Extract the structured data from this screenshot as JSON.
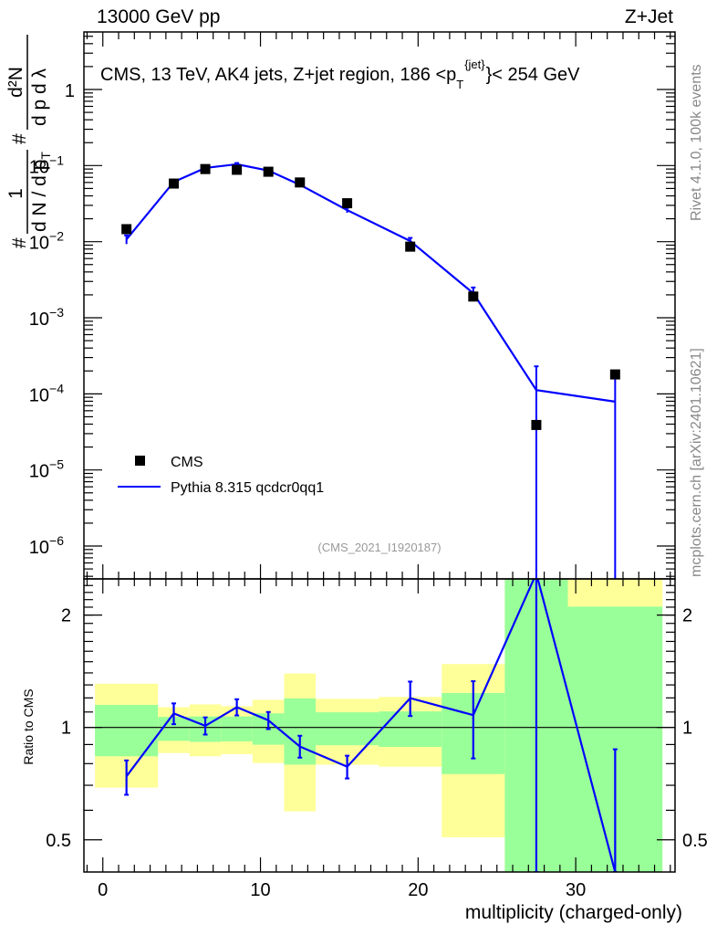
{
  "header": {
    "left": "13000 GeV pp",
    "right": "Z+Jet"
  },
  "side_labels": {
    "rivet": "Rivet 4.1.0,  100k events",
    "mcplots": "mcplots.cern.ch [arXiv:2401.10621]"
  },
  "colors": {
    "data": "#000000",
    "mc": "#0000ff",
    "band_stat": "#99ff99",
    "band_total": "#ffff99"
  },
  "chart_data": [
    {
      "type": "scatter",
      "panel": "main",
      "title": "CMS, 13 TeV, AK4 jets, Z+jet region, 186 <p",
      "title_sup": "{jet}",
      "title_sub": "T",
      "title_tail": "}< 254 GeV",
      "analysis_tag": "(CMS_2021_I1920187)",
      "ylabel": {
        "hash1": "#",
        "frac1_num": "1",
        "frac1_den": "d N / d p",
        "hash2": "#",
        "frac2_num": "d²N",
        "frac2_den": "d p   d λ",
        "sub": "T"
      },
      "yscale": "log",
      "xlim": [
        -1.2,
        36.3
      ],
      "ylim": [
        3.7e-07,
        5.7
      ],
      "yticks": [
        {
          "v": 1,
          "label": "1"
        },
        {
          "v": 0.1,
          "label": "10",
          "exp": "−1"
        },
        {
          "v": 0.01,
          "label": "10",
          "exp": "−2"
        },
        {
          "v": 0.001,
          "label": "10",
          "exp": "−3"
        },
        {
          "v": 0.0001,
          "label": "10",
          "exp": "−4"
        },
        {
          "v": 1e-05,
          "label": "10",
          "exp": "−5"
        },
        {
          "v": 1e-06,
          "label": "10",
          "exp": "−6"
        }
      ],
      "legend": {
        "placement": "bottom-left",
        "entries": [
          "CMS",
          "Pythia 8.315 qcdcr0qq1"
        ]
      },
      "x": [
        1.5,
        4.5,
        6.5,
        8.5,
        10.5,
        12.5,
        15.5,
        19.5,
        23.5,
        27.5,
        32.5
      ],
      "series": [
        {
          "name": "CMS",
          "values": [
            0.0146,
            0.058,
            0.09,
            0.088,
            0.083,
            0.06,
            0.032,
            0.0086,
            0.0019,
            3.9e-05,
            0.00018
          ]
        },
        {
          "name": "Pythia 8.315 qcdcr0qq1",
          "values": [
            0.0107,
            0.061,
            0.093,
            0.104,
            0.086,
            0.056,
            0.026,
            0.0102,
            0.0021,
            0.000112,
            7.9e-05
          ],
          "err_low": [
            0.0093,
            0.057,
            0.089,
            0.1,
            0.083,
            0.053,
            0.024,
            0.0094,
            0.0018,
            0.0,
            0.0
          ],
          "err_high": [
            0.0121,
            0.065,
            0.097,
            0.108,
            0.089,
            0.059,
            0.028,
            0.0112,
            0.0025,
            0.00023,
            0.00018
          ]
        }
      ]
    },
    {
      "type": "line",
      "panel": "ratio",
      "ylabel": "Ratio to CMS",
      "xlabel": "multiplicity (charged-only)",
      "yscale": "log",
      "xlim": [
        -1.2,
        36.3
      ],
      "ylim": [
        0.41,
        2.5
      ],
      "yticks": [
        {
          "v": 0.5,
          "label": "0.5"
        },
        {
          "v": 1,
          "label": "1"
        },
        {
          "v": 2,
          "label": "2"
        }
      ],
      "xticks": [
        0,
        10,
        20,
        30
      ],
      "bin_edges": [
        -0.5,
        3.5,
        5.5,
        7.5,
        9.5,
        11.5,
        13.5,
        17.5,
        21.5,
        25.5,
        29.5,
        35.5
      ],
      "band_total": {
        "low": [
          0.69,
          0.854,
          0.837,
          0.848,
          0.803,
          0.596,
          0.795,
          0.785,
          0.508,
          0.3,
          0.2
        ],
        "high": [
          1.31,
          1.133,
          1.153,
          1.14,
          1.186,
          1.395,
          1.193,
          1.207,
          1.479,
          3.5,
          5.0
        ]
      },
      "band_stat": {
        "low": [
          0.837,
          0.921,
          0.915,
          0.918,
          0.899,
          0.795,
          0.896,
          0.887,
          0.75,
          0.3,
          0.3
        ],
        "high": [
          1.149,
          1.067,
          1.07,
          1.07,
          1.091,
          1.196,
          1.098,
          1.104,
          1.237,
          3.5,
          2.107
        ]
      },
      "x": [
        1.5,
        4.5,
        6.5,
        8.5,
        10.5,
        12.5,
        15.5,
        19.5,
        23.5,
        27.5,
        32.5
      ],
      "series": [
        {
          "name": "Pythia 8.315 qcdcr0qq1 / CMS",
          "values": [
            0.74,
            1.09,
            1.01,
            1.133,
            1.045,
            0.889,
            0.785,
            1.198,
            1.079,
            2.9,
            0.41
          ],
          "err_low": [
            0.66,
            1.02,
            0.957,
            1.077,
            0.99,
            0.83,
            0.73,
            1.073,
            0.826,
            0.0,
            0.0
          ],
          "err_high": [
            0.816,
            1.16,
            1.064,
            1.19,
            1.1,
            0.95,
            0.84,
            1.327,
            1.33,
            6.0,
            0.874
          ]
        }
      ]
    }
  ]
}
